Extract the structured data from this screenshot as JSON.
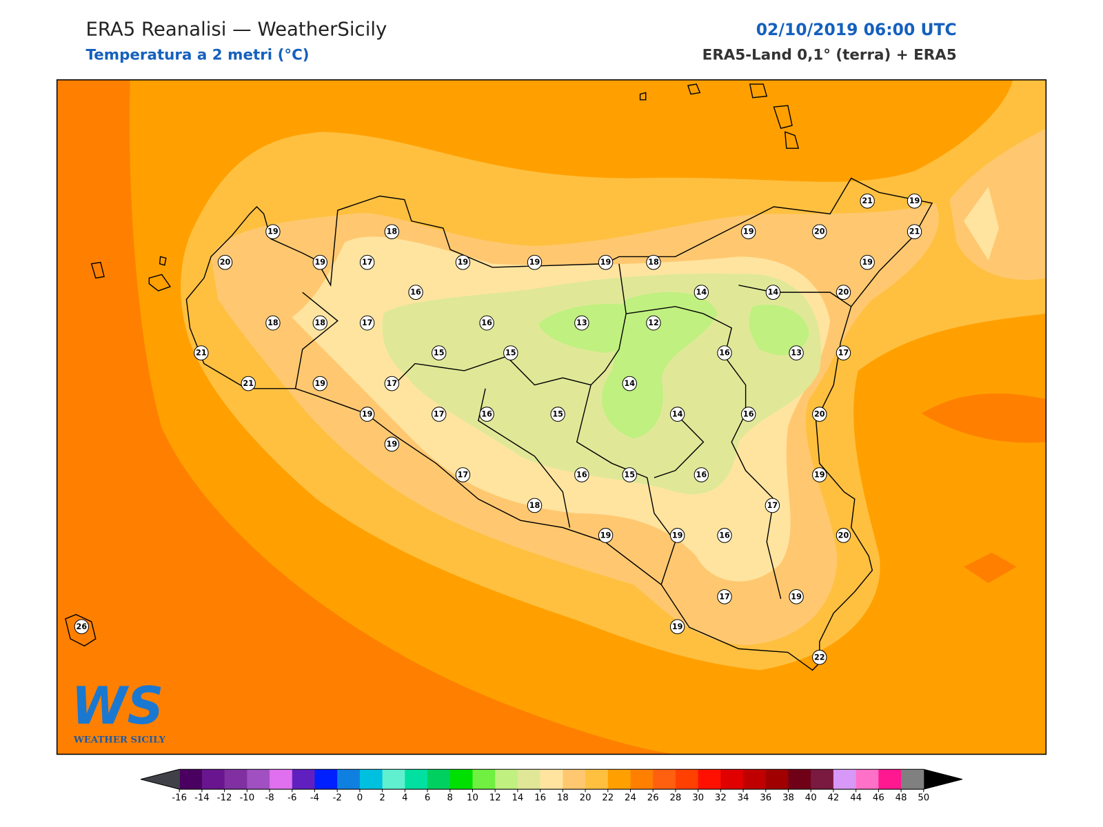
{
  "header": {
    "title": "ERA5 Reanalisi — WeatherSicily",
    "subtitle": "Temperatura a 2 metri (°C)",
    "datetime": "02/10/2019 06:00 UTC",
    "source": "ERA5-Land 0,1° (terra) + ERA5"
  },
  "stations": [
    19,
    18,
    20,
    19,
    17,
    19,
    19,
    19,
    18,
    16,
    18,
    18,
    17,
    16,
    13,
    12,
    14,
    14,
    19,
    20,
    21,
    19,
    21,
    19,
    20,
    21,
    15,
    15,
    16,
    13,
    17,
    21,
    19,
    17,
    14,
    19,
    17,
    16,
    15,
    14,
    16,
    20,
    19,
    17,
    16,
    15,
    16,
    19,
    18,
    17,
    19,
    19,
    16,
    20,
    17,
    19,
    19,
    22,
    26
  ],
  "logo": {
    "mark": "WS",
    "text": "WEATHER SICILY"
  },
  "colorbar": {
    "ticks": [
      -16,
      -14,
      -12,
      -10,
      -8,
      -6,
      -4,
      -2,
      0,
      2,
      4,
      6,
      8,
      10,
      12,
      14,
      16,
      18,
      20,
      22,
      24,
      26,
      28,
      30,
      32,
      34,
      36,
      38,
      40,
      42,
      44,
      46,
      48,
      50
    ],
    "colors": [
      "#4a0060",
      "#6a1590",
      "#8030a0",
      "#a050c0",
      "#e070f0",
      "#6020c0",
      "#0020ff",
      "#1080e0",
      "#00c0e0",
      "#60f0d0",
      "#00e0a0",
      "#00d060",
      "#00e000",
      "#70f040",
      "#c0f080",
      "#e0e898",
      "#ffe4a0",
      "#ffc870",
      "#ffc040",
      "#ffa000",
      "#ff8000",
      "#ff6010",
      "#ff4000",
      "#ff1000",
      "#e00000",
      "#c00000",
      "#a00000",
      "#700018",
      "#7a1a40",
      "#d898f8",
      "#ff70c8",
      "#ff1890",
      "#808080"
    ],
    "under_color": "#404048",
    "over_color": "#000000"
  }
}
